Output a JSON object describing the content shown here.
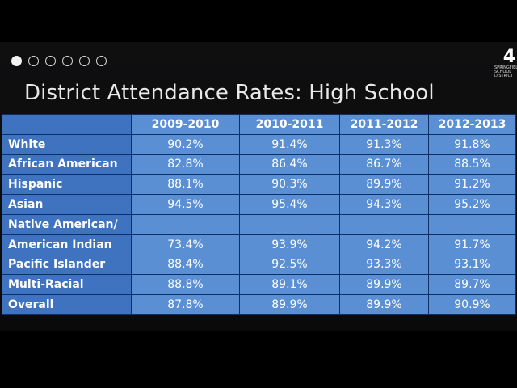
{
  "slide": {
    "title": "District Attendance Rates: High School",
    "progress_dots": {
      "total": 6,
      "active_index": 0
    },
    "logo": {
      "number": "4",
      "text_lines": [
        "SPRINGFIELD",
        "SCHOOL",
        "DISTRICT"
      ]
    }
  },
  "table": {
    "headers": [
      "",
      "2009-2010",
      "2010-2011",
      "2011-2012",
      "2012-2013"
    ],
    "rows": [
      {
        "label": "White",
        "values": [
          "90.2%",
          "91.4%",
          "91.3%",
          "91.8%"
        ]
      },
      {
        "label": "African American",
        "values": [
          "82.8%",
          "86.4%",
          "86.7%",
          "88.5%"
        ]
      },
      {
        "label": "Hispanic",
        "values": [
          "88.1%",
          "90.3%",
          "89.9%",
          "91.2%"
        ]
      },
      {
        "label": "Asian",
        "values": [
          "94.5%",
          "95.4%",
          "94.3%",
          "95.2%"
        ]
      },
      {
        "label": "Native American/",
        "values": [
          "",
          "",
          "",
          ""
        ]
      },
      {
        "label": "American Indian",
        "values": [
          "73.4%",
          "93.9%",
          "94.2%",
          "91.7%"
        ]
      },
      {
        "label": "Pacific Islander",
        "values": [
          "88.4%",
          "92.5%",
          "93.3%",
          "93.1%"
        ]
      },
      {
        "label": "Multi-Racial",
        "values": [
          "88.8%",
          "89.1%",
          "89.9%",
          "89.7%"
        ]
      },
      {
        "label": "Overall",
        "values": [
          "87.8%",
          "89.9%",
          "89.9%",
          "90.9%"
        ]
      }
    ]
  },
  "colors": {
    "header_bg": "#5b8fd4",
    "label_bg": "#3f73c0",
    "border": "#0d2f66"
  }
}
